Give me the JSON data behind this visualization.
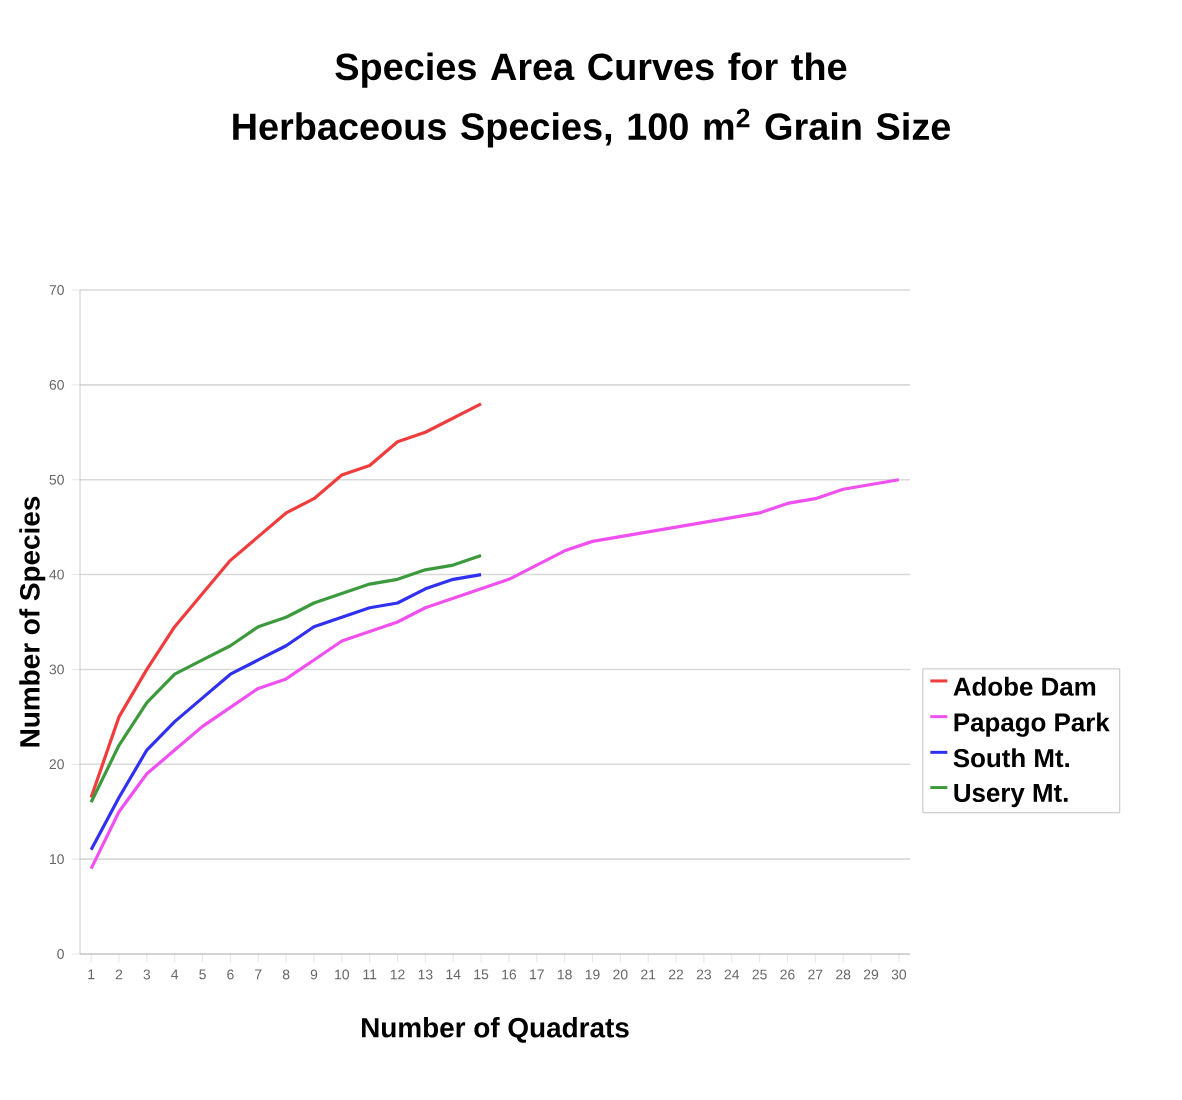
{
  "chart_data": {
    "type": "line",
    "title": "Species Area Curves for the Herbaceous Species, 100 m$^{2}$ Grain Size",
    "xlabel": "Number of Quadrats",
    "ylabel": "Number of Species",
    "xlim": [
      0.6,
      30.4
    ],
    "ylim": [
      0,
      70
    ],
    "xticks": [
      1,
      2,
      3,
      4,
      5,
      6,
      7,
      8,
      9,
      10,
      11,
      12,
      13,
      14,
      15,
      16,
      17,
      18,
      19,
      20,
      21,
      22,
      23,
      24,
      25,
      26,
      27,
      28,
      29,
      30
    ],
    "yticks": [
      0,
      10,
      20,
      30,
      40,
      50,
      60,
      70
    ],
    "grid": "y",
    "legend": "right",
    "marker": "none",
    "line_style": "solid",
    "series": [
      {
        "name": "Adobe Dam",
        "color": "#f03c3c",
        "x": [
          1,
          2,
          3,
          4,
          5,
          6,
          7,
          8,
          9,
          10,
          11,
          12,
          13,
          14,
          15
        ],
        "values": [
          16.5,
          25,
          30,
          34.5,
          38,
          41.5,
          44,
          46.5,
          48,
          50.5,
          51.5,
          54,
          55,
          56.5,
          58
        ]
      },
      {
        "name": "Papago Park",
        "color": "#f050f0",
        "x": [
          1,
          2,
          3,
          4,
          5,
          6,
          7,
          8,
          9,
          10,
          11,
          12,
          13,
          14,
          15,
          16,
          17,
          18,
          19,
          20,
          21,
          22,
          23,
          24,
          25,
          26,
          27,
          28,
          29,
          30
        ],
        "values": [
          9,
          15,
          19,
          21.5,
          24,
          26,
          28,
          29,
          31,
          33,
          34,
          35,
          36.5,
          37.5,
          38.5,
          39.5,
          41,
          42.5,
          43.5,
          44,
          44.5,
          45,
          45.5,
          46,
          46.5,
          47.5,
          48,
          49,
          49.5,
          50
        ]
      },
      {
        "name": "South Mt.",
        "color": "#3030f0",
        "x": [
          1,
          2,
          3,
          4,
          5,
          6,
          7,
          8,
          9,
          10,
          11,
          12,
          13,
          14,
          15
        ],
        "values": [
          11,
          16.5,
          21.5,
          24.5,
          27,
          29.5,
          31,
          32.5,
          34.5,
          35.5,
          36.5,
          37,
          38.5,
          39.5,
          40
        ]
      },
      {
        "name": "Usery Mt.",
        "color": "#3c9a3c",
        "x": [
          1,
          2,
          3,
          4,
          5,
          6,
          7,
          8,
          9,
          10,
          11,
          12,
          13,
          14,
          15
        ],
        "values": [
          16,
          22,
          26.5,
          29.5,
          31,
          32.5,
          34.5,
          35.5,
          37,
          38,
          39,
          39.5,
          40.5,
          41,
          42
        ]
      }
    ]
  }
}
